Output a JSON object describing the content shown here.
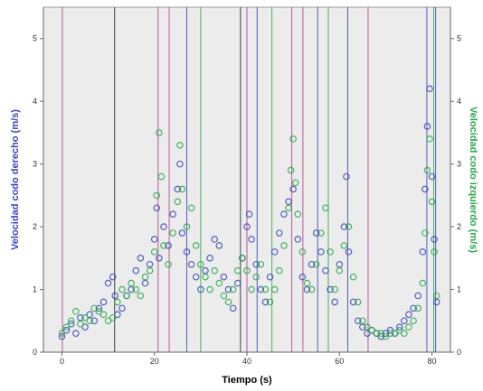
{
  "chart_data": {
    "type": "scatter",
    "xlabel": "Tiempo (s)",
    "ylabel_left": "Velocidad codo derecho (m/s)",
    "ylabel_right": "Velocidad codo izquierdo (m/s)",
    "xlim": [
      -4,
      84
    ],
    "ylim": [
      0,
      5.5
    ],
    "x_ticks": [
      "0",
      "20",
      "40",
      "60",
      "80"
    ],
    "y_ticks": [
      "0",
      "1",
      "2",
      "3",
      "4",
      "5"
    ],
    "grid": false,
    "legend": "none",
    "event_lines": [
      {
        "x": 0.1,
        "color": "#b0408a"
      },
      {
        "x": 11.4,
        "color": "#222222"
      },
      {
        "x": 20.8,
        "color": "#b0408a"
      },
      {
        "x": 23.2,
        "color": "#b0408a"
      },
      {
        "x": 27.0,
        "color": "#3b46b8"
      },
      {
        "x": 30.0,
        "color": "#2aa84a"
      },
      {
        "x": 38.6,
        "color": "#222222"
      },
      {
        "x": 40.0,
        "color": "#b0408a"
      },
      {
        "x": 42.2,
        "color": "#3b46b8"
      },
      {
        "x": 45.4,
        "color": "#2aa84a"
      },
      {
        "x": 49.7,
        "color": "#b0408a"
      },
      {
        "x": 52.1,
        "color": "#b0408a"
      },
      {
        "x": 55.3,
        "color": "#3b46b8"
      },
      {
        "x": 57.6,
        "color": "#2aa84a"
      },
      {
        "x": 61.8,
        "color": "#3b46b8"
      },
      {
        "x": 66.2,
        "color": "#b0408a"
      },
      {
        "x": 78.9,
        "color": "#3b46b8"
      },
      {
        "x": 80.4,
        "color": "#2aa84a"
      },
      {
        "x": 80.8,
        "color": "#3b46b8"
      }
    ],
    "series": [
      {
        "color": "#3b46b8",
        "points": [
          [
            0,
            0.25
          ],
          [
            1,
            0.35
          ],
          [
            2,
            0.45
          ],
          [
            3,
            0.3
          ],
          [
            4,
            0.55
          ],
          [
            5,
            0.4
          ],
          [
            6,
            0.6
          ],
          [
            7,
            0.5
          ],
          [
            8,
            0.7
          ],
          [
            9,
            0.8
          ],
          [
            10,
            1.1
          ],
          [
            11,
            1.2
          ],
          [
            11.5,
            0.9
          ],
          [
            12,
            0.6
          ],
          [
            13,
            0.7
          ],
          [
            14,
            0.9
          ],
          [
            15,
            1.0
          ],
          [
            16,
            1.3
          ],
          [
            17,
            1.5
          ],
          [
            18,
            1.1
          ],
          [
            19,
            1.4
          ],
          [
            20,
            1.8
          ],
          [
            20.5,
            2.3
          ],
          [
            21,
            1.5
          ],
          [
            22,
            2.0
          ],
          [
            23,
            1.7
          ],
          [
            24,
            2.2
          ],
          [
            25,
            2.6
          ],
          [
            25.5,
            3.0
          ],
          [
            26,
            1.9
          ],
          [
            27,
            1.6
          ],
          [
            28,
            1.4
          ],
          [
            29,
            1.2
          ],
          [
            30,
            1.0
          ],
          [
            31,
            1.3
          ],
          [
            32,
            1.5
          ],
          [
            33,
            1.8
          ],
          [
            34,
            1.7
          ],
          [
            35,
            1.2
          ],
          [
            36,
            1.0
          ],
          [
            37,
            0.7
          ],
          [
            38,
            1.1
          ],
          [
            39,
            1.5
          ],
          [
            40,
            2.0
          ],
          [
            40.5,
            2.2
          ],
          [
            41,
            1.8
          ],
          [
            42,
            1.4
          ],
          [
            43,
            1.0
          ],
          [
            44,
            0.8
          ],
          [
            45,
            1.2
          ],
          [
            46,
            1.6
          ],
          [
            47,
            1.9
          ],
          [
            48,
            2.2
          ],
          [
            49,
            2.4
          ],
          [
            50,
            2.6
          ],
          [
            51,
            1.8
          ],
          [
            52,
            1.2
          ],
          [
            53,
            1.0
          ],
          [
            54,
            1.4
          ],
          [
            55,
            1.9
          ],
          [
            56,
            1.6
          ],
          [
            57,
            1.3
          ],
          [
            58,
            1.0
          ],
          [
            59,
            0.8
          ],
          [
            60,
            1.4
          ],
          [
            61,
            2.0
          ],
          [
            61.5,
            2.8
          ],
          [
            62,
            1.6
          ],
          [
            63,
            0.8
          ],
          [
            64,
            0.5
          ],
          [
            65,
            0.4
          ],
          [
            66,
            0.3
          ],
          [
            67,
            0.35
          ],
          [
            68,
            0.3
          ],
          [
            69,
            0.25
          ],
          [
            70,
            0.3
          ],
          [
            71,
            0.35
          ],
          [
            72,
            0.3
          ],
          [
            73,
            0.4
          ],
          [
            74,
            0.5
          ],
          [
            75,
            0.6
          ],
          [
            76,
            0.7
          ],
          [
            77,
            0.9
          ],
          [
            78,
            1.6
          ],
          [
            78.5,
            2.6
          ],
          [
            79,
            3.6
          ],
          [
            79.5,
            4.2
          ],
          [
            80,
            2.8
          ],
          [
            80.5,
            1.8
          ],
          [
            81,
            0.8
          ]
        ]
      },
      {
        "color": "#2aa84a",
        "points": [
          [
            0,
            0.3
          ],
          [
            1,
            0.4
          ],
          [
            2,
            0.5
          ],
          [
            3,
            0.65
          ],
          [
            4,
            0.45
          ],
          [
            5,
            0.55
          ],
          [
            6,
            0.5
          ],
          [
            7,
            0.7
          ],
          [
            8,
            0.65
          ],
          [
            9,
            0.6
          ],
          [
            10,
            0.5
          ],
          [
            11,
            0.55
          ],
          [
            12,
            0.8
          ],
          [
            13,
            1.0
          ],
          [
            14,
            0.9
          ],
          [
            15,
            1.1
          ],
          [
            16,
            1.0
          ],
          [
            17,
            0.9
          ],
          [
            18,
            1.2
          ],
          [
            19,
            1.3
          ],
          [
            20,
            1.6
          ],
          [
            20.5,
            2.5
          ],
          [
            21,
            3.5
          ],
          [
            21.5,
            2.8
          ],
          [
            22,
            1.7
          ],
          [
            23,
            1.4
          ],
          [
            24,
            1.9
          ],
          [
            25,
            2.4
          ],
          [
            25.5,
            3.3
          ],
          [
            26,
            2.6
          ],
          [
            27,
            2.0
          ],
          [
            28,
            2.3
          ],
          [
            29,
            1.7
          ],
          [
            30,
            1.4
          ],
          [
            31,
            1.2
          ],
          [
            32,
            1.0
          ],
          [
            33,
            1.3
          ],
          [
            34,
            1.1
          ],
          [
            35,
            0.9
          ],
          [
            36,
            0.8
          ],
          [
            37,
            1.0
          ],
          [
            38,
            1.3
          ],
          [
            39,
            1.5
          ],
          [
            40,
            1.3
          ],
          [
            41,
            1.0
          ],
          [
            42,
            1.2
          ],
          [
            43,
            1.4
          ],
          [
            44,
            1.0
          ],
          [
            45,
            0.8
          ],
          [
            46,
            1.0
          ],
          [
            47,
            1.3
          ],
          [
            48,
            1.7
          ],
          [
            49,
            2.3
          ],
          [
            49.5,
            2.9
          ],
          [
            50,
            3.4
          ],
          [
            50.5,
            2.7
          ],
          [
            51,
            2.2
          ],
          [
            52,
            1.6
          ],
          [
            53,
            1.1
          ],
          [
            54,
            1.0
          ],
          [
            55,
            1.4
          ],
          [
            56,
            1.9
          ],
          [
            57,
            2.3
          ],
          [
            58,
            1.6
          ],
          [
            59,
            1.0
          ],
          [
            60,
            1.3
          ],
          [
            61,
            1.7
          ],
          [
            62,
            2.0
          ],
          [
            63,
            1.2
          ],
          [
            64,
            0.8
          ],
          [
            65,
            0.5
          ],
          [
            66,
            0.4
          ],
          [
            67,
            0.35
          ],
          [
            68,
            0.3
          ],
          [
            69,
            0.3
          ],
          [
            70,
            0.25
          ],
          [
            71,
            0.3
          ],
          [
            72,
            0.3
          ],
          [
            73,
            0.35
          ],
          [
            74,
            0.3
          ],
          [
            75,
            0.4
          ],
          [
            76,
            0.5
          ],
          [
            77,
            0.7
          ],
          [
            78,
            1.1
          ],
          [
            78.5,
            1.9
          ],
          [
            79,
            2.9
          ],
          [
            79.5,
            3.4
          ],
          [
            80,
            2.4
          ],
          [
            80.5,
            1.6
          ],
          [
            81,
            0.9
          ]
        ]
      }
    ]
  }
}
